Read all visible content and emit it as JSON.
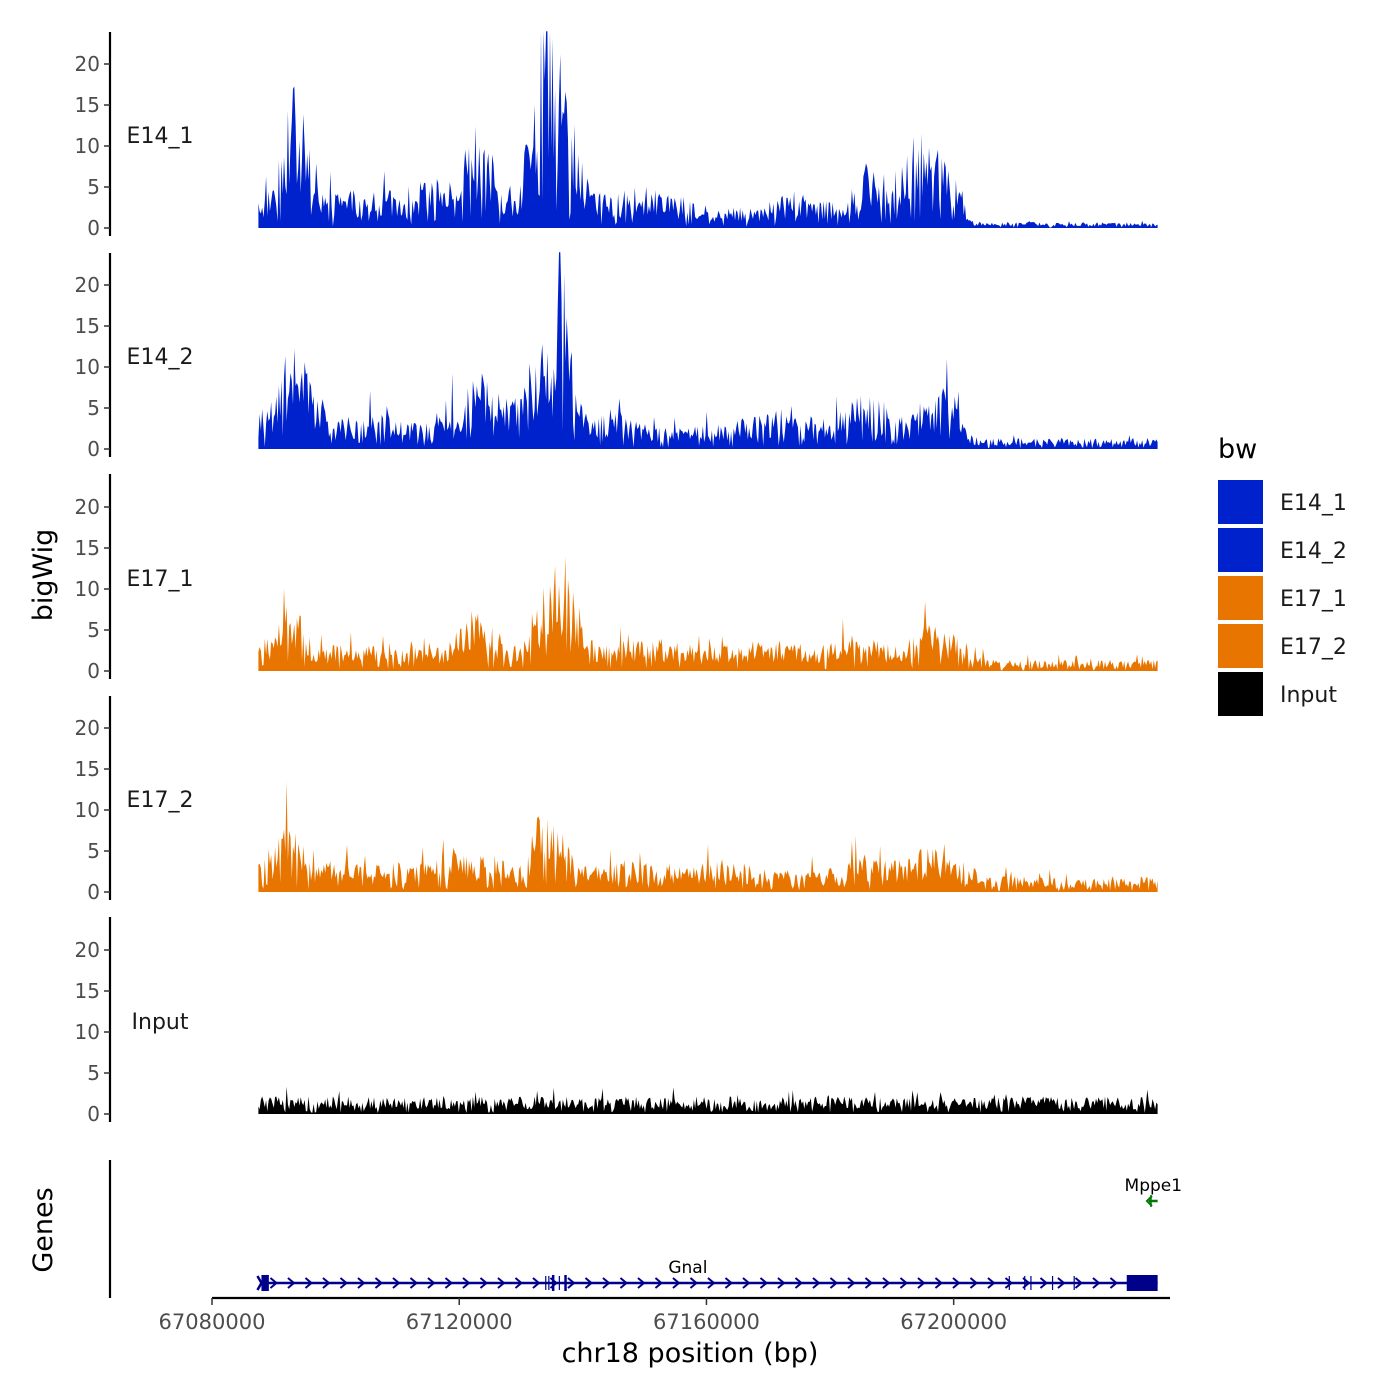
{
  "chart_data": {
    "type": "area",
    "chromosome": "chr18",
    "xlim": [
      67080000,
      67235000
    ],
    "data_x_range": [
      67087500,
      67233000
    ],
    "ylim": [
      0,
      24
    ],
    "y_ticks": [
      0,
      5,
      10,
      15,
      20
    ],
    "x_ticks": [
      67080000,
      67120000,
      67160000,
      67200000
    ],
    "x_tick_labels": [
      "67080000",
      "67120000",
      "67160000",
      "67200000"
    ],
    "y_tick_labels": [
      "0",
      "5",
      "10",
      "15",
      "20"
    ],
    "xlabel": "chr18 position (bp)",
    "ylabel": "bigWig",
    "genes_ylabel": "Genes",
    "legend": {
      "title": "bw",
      "position": "right",
      "entries": [
        {
          "label": "E14_1",
          "color": "#0022CC"
        },
        {
          "label": "E14_2",
          "color": "#0022CC"
        },
        {
          "label": "E17_1",
          "color": "#E87500"
        },
        {
          "label": "E17_2",
          "color": "#E87500"
        },
        {
          "label": "Input",
          "color": "#000000"
        }
      ]
    },
    "series": [
      {
        "name": "E14_1",
        "color": "#0022CC",
        "base_level": 1.8,
        "peaks": [
          [
            67088000,
            1,
            2
          ],
          [
            67093000,
            9,
            1.8
          ],
          [
            67095000,
            3,
            2
          ],
          [
            67102000,
            1.5,
            3
          ],
          [
            67110000,
            1.5,
            4
          ],
          [
            67116000,
            2,
            3
          ],
          [
            67122000,
            6,
            2.2
          ],
          [
            67125000,
            3,
            2
          ],
          [
            67132000,
            5,
            1.8
          ],
          [
            67135000,
            16,
            2
          ],
          [
            67137000,
            5,
            3
          ],
          [
            67150000,
            2,
            5
          ],
          [
            67175000,
            1.5,
            4
          ],
          [
            67186000,
            4,
            1.8
          ],
          [
            67194000,
            7,
            2.5
          ],
          [
            67198000,
            4,
            2.5
          ]
        ],
        "falloff": [
          67202000,
          0.3
        ]
      },
      {
        "name": "E14_2",
        "color": "#0022CC",
        "base_level": 2.0,
        "peaks": [
          [
            67088000,
            1,
            2
          ],
          [
            67093000,
            8,
            1.8
          ],
          [
            67096000,
            2,
            2
          ],
          [
            67106000,
            1.5,
            4
          ],
          [
            67119000,
            3,
            2
          ],
          [
            67124000,
            5,
            2
          ],
          [
            67129000,
            3,
            1.5
          ],
          [
            67135000,
            10,
            2.5
          ],
          [
            67136500,
            8,
            1.2
          ],
          [
            67145000,
            1.5,
            3
          ],
          [
            67172000,
            1.5,
            6
          ],
          [
            67186000,
            3,
            3
          ],
          [
            67196000,
            2.5,
            2.5
          ],
          [
            67199500,
            3,
            2
          ]
        ],
        "falloff": [
          67202000,
          0.5
        ]
      },
      {
        "name": "E17_1",
        "color": "#E87500",
        "base_level": 2.0,
        "peaks": [
          [
            67089000,
            1,
            2
          ],
          [
            67093000,
            4,
            1.8
          ],
          [
            67103000,
            0.5,
            4
          ],
          [
            67122000,
            3,
            2.2
          ],
          [
            67125000,
            1.5,
            2
          ],
          [
            67134000,
            3,
            2
          ],
          [
            67136000,
            7,
            1.8
          ],
          [
            67138000,
            2.5,
            2
          ],
          [
            67150000,
            1,
            5
          ],
          [
            67170000,
            0.8,
            6
          ],
          [
            67185000,
            1.5,
            3
          ],
          [
            67197000,
            2.5,
            3
          ]
        ],
        "falloff": [
          67205000,
          0.5
        ]
      },
      {
        "name": "E17_2",
        "color": "#E87500",
        "base_level": 2.0,
        "peaks": [
          [
            67090000,
            2,
            1.8
          ],
          [
            67093000,
            4,
            1.5
          ],
          [
            67101000,
            1,
            3
          ],
          [
            67111000,
            1,
            3
          ],
          [
            67119000,
            2,
            2
          ],
          [
            67125000,
            1.5,
            2
          ],
          [
            67133000,
            3,
            1.5
          ],
          [
            67135000,
            5,
            2
          ],
          [
            67149000,
            1,
            5
          ],
          [
            67163000,
            1,
            3
          ],
          [
            67186000,
            1.5,
            3
          ],
          [
            67196000,
            2,
            3
          ],
          [
            67210000,
            0.5,
            4
          ],
          [
            67232000,
            0.5,
            2
          ]
        ],
        "falloff": [
          67204000,
          0.6
        ]
      },
      {
        "name": "Input",
        "color": "#000000",
        "base_level": 1.6,
        "peaks": [],
        "falloff": [
          67300000,
          1.0
        ]
      }
    ],
    "genes": [
      {
        "name": "Gnal",
        "strand": "+",
        "color": "#00008B",
        "start": 67088000,
        "end": 67233000,
        "label_x": 67157000,
        "exons": [
          [
            67088000,
            67089200
          ],
          [
            67135000,
            67135400
          ],
          [
            67137000,
            67137400
          ],
          [
            67233000,
            67233000
          ],
          [
            67228000,
            67233000
          ]
        ],
        "thin_marks": [
          67134000,
          67134500,
          67136200,
          67209000,
          67211500,
          67212500,
          67216000,
          67219500
        ]
      },
      {
        "name": "Mppe1",
        "strand": "-",
        "color": "#007700",
        "start": 67231600,
        "end": 67233000,
        "label_x": 67232300
      }
    ]
  }
}
